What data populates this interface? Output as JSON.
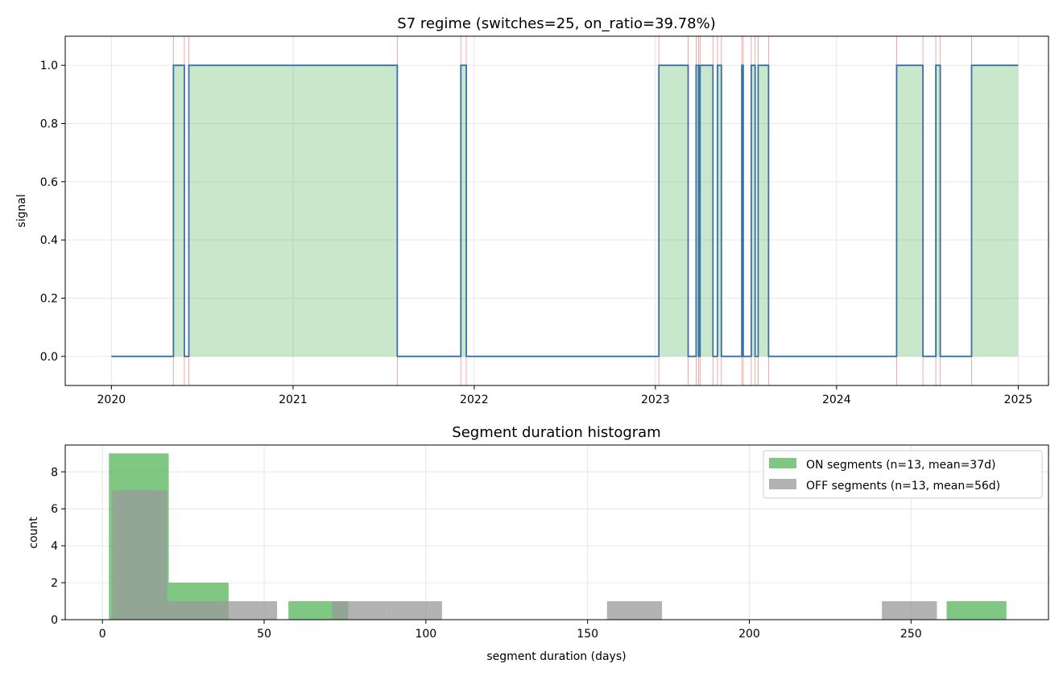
{
  "chart_data": [
    {
      "type": "line",
      "title": "S7 regime (switches=25, on_ratio=39.78%)",
      "xlabel": "",
      "ylabel": "signal",
      "x_ticks": [
        "2020",
        "2021",
        "2022",
        "2023",
        "2024",
        "2025"
      ],
      "y_ticks": [
        "0.0",
        "0.2",
        "0.4",
        "0.6",
        "0.8",
        "1.0"
      ],
      "xlim": [
        "2019-09-30",
        "2025-03-03"
      ],
      "ylim": [
        -0.1,
        1.1
      ],
      "grid": true,
      "step": true,
      "fill_on": true,
      "switch_markers": true,
      "start": "2020-01-01",
      "end": "2025-01-01",
      "series": [
        {
          "values": [
            {
              "x": "2020-01-01",
              "y": 0
            },
            {
              "x": "2020-05-05",
              "y": 1
            },
            {
              "x": "2020-05-27",
              "y": 0
            },
            {
              "x": "2020-06-05",
              "y": 1
            },
            {
              "x": "2021-07-30",
              "y": 0
            },
            {
              "x": "2021-12-05",
              "y": 1
            },
            {
              "x": "2021-12-16",
              "y": 0
            },
            {
              "x": "2023-01-08",
              "y": 1
            },
            {
              "x": "2023-03-08",
              "y": 0
            },
            {
              "x": "2023-03-24",
              "y": 1
            },
            {
              "x": "2023-03-29",
              "y": 0
            },
            {
              "x": "2023-04-01",
              "y": 1
            },
            {
              "x": "2023-04-27",
              "y": 0
            },
            {
              "x": "2023-05-06",
              "y": 1
            },
            {
              "x": "2023-05-14",
              "y": 0
            },
            {
              "x": "2023-06-24",
              "y": 1
            },
            {
              "x": "2023-06-27",
              "y": 0
            },
            {
              "x": "2023-07-13",
              "y": 1
            },
            {
              "x": "2023-07-21",
              "y": 0
            },
            {
              "x": "2023-07-27",
              "y": 1
            },
            {
              "x": "2023-08-17",
              "y": 0
            },
            {
              "x": "2024-05-01",
              "y": 1
            },
            {
              "x": "2024-06-23",
              "y": 0
            },
            {
              "x": "2024-07-19",
              "y": 1
            },
            {
              "x": "2024-07-28",
              "y": 0
            },
            {
              "x": "2024-09-29",
              "y": 1
            },
            {
              "x": "2025-01-01",
              "y": 1
            }
          ]
        }
      ]
    },
    {
      "type": "bar",
      "title": "Segment duration histogram",
      "xlabel": "segment duration (days)",
      "ylabel": "count",
      "x_ticks": [
        "0",
        "50",
        "100",
        "150",
        "200",
        "250"
      ],
      "y_ticks": [
        "0",
        "2",
        "4",
        "6",
        "8"
      ],
      "xlim": [
        -11.5,
        292.5
      ],
      "ylim": [
        0,
        9.45
      ],
      "grid": true,
      "legend": "top-right",
      "series": [
        {
          "name": "ON segments (n=13, mean=37d)",
          "color": "#4caf50",
          "bins": [
            {
              "x0": 2,
              "x1": 20.5,
              "count": 9
            },
            {
              "x0": 20.5,
              "x1": 39,
              "count": 2
            },
            {
              "x0": 57.5,
              "x1": 76,
              "count": 1
            },
            {
              "x0": 261,
              "x1": 279.5,
              "count": 1
            }
          ]
        },
        {
          "name": "OFF segments (n=13, mean=56d)",
          "color": "#999999",
          "bins": [
            {
              "x0": 3,
              "x1": 20,
              "count": 7
            },
            {
              "x0": 20,
              "x1": 37,
              "count": 1
            },
            {
              "x0": 37,
              "x1": 54,
              "count": 1
            },
            {
              "x0": 71,
              "x1": 88,
              "count": 1
            },
            {
              "x0": 88,
              "x1": 105,
              "count": 1
            },
            {
              "x0": 156,
              "x1": 173,
              "count": 1
            },
            {
              "x0": 241,
              "x1": 258,
              "count": 1
            }
          ]
        }
      ]
    }
  ]
}
